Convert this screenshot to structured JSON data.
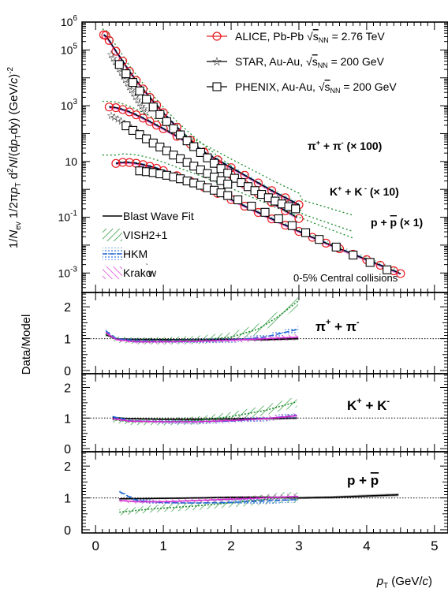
{
  "chart_data": [
    {
      "type": "scatter",
      "panel": "spectra",
      "ylabel": "1/N_ev 1/2πp_T d²N/(dp_T dy) (GeV/c)^-2",
      "yscale": "log",
      "ylim": [
        0.0002,
        1000000
      ],
      "xlim": [
        -0.2,
        5.2
      ],
      "yticks": [
        "10^-3",
        "10^-1",
        "10",
        "10^3",
        "10^5",
        "10^6"
      ],
      "legend_top": [
        {
          "key": "alice",
          "label": "ALICE, Pb-Pb √s_NN = 2.76 TeV",
          "marker": "open-circle",
          "color": "#e8191f"
        },
        {
          "key": "star",
          "label": "STAR, Au-Au, √s_NN = 200 GeV",
          "marker": "open-star",
          "color": "#000000"
        },
        {
          "key": "phenix",
          "label": "PHENIX, Au-Au, √s_NN = 200 GeV",
          "marker": "open-square",
          "color": "#000000"
        }
      ],
      "legend_models": [
        {
          "key": "bw",
          "label": "Blast Wave Fit",
          "color": "#000000"
        },
        {
          "key": "vish",
          "label": "VISH2+1",
          "color": "#1e8f2c"
        },
        {
          "key": "hkm",
          "label": "HKM",
          "color": "#1f67d6"
        },
        {
          "key": "krak",
          "label": "Krakow",
          "color": "#d42bd0"
        }
      ],
      "species_labels": [
        "π⁺ + π⁻ (× 100)",
        "K⁺ + K⁻ (× 10)",
        "p + p̄ (× 1)"
      ],
      "annotation": "0-5% Central collisions",
      "series": [
        {
          "name": "π⁺ + π⁻ (× 100) ALICE",
          "x": [
            0.12,
            0.15,
            0.2,
            0.3,
            0.4,
            0.5,
            0.6,
            0.7,
            0.8,
            0.9,
            1.0,
            1.2,
            1.4,
            1.6,
            1.8,
            2.0,
            2.2,
            2.4,
            2.6,
            2.8,
            3.0
          ],
          "y": [
            350000,
            330000,
            220000,
            90000,
            40000,
            17000,
            8000,
            4000,
            2000,
            1050,
            560,
            170,
            58,
            21,
            8.3,
            3.4,
            1.5,
            0.7,
            0.34,
            0.17,
            0.09
          ]
        },
        {
          "name": "K⁺ + K⁻ (× 10) ALICE",
          "x": [
            0.2,
            0.3,
            0.4,
            0.5,
            0.6,
            0.7,
            0.8,
            0.9,
            1.0,
            1.2,
            1.4,
            1.6,
            1.8,
            2.0,
            2.2,
            2.4,
            2.6,
            2.8,
            3.0
          ],
          "y": [
            900,
            850,
            730,
            600,
            470,
            360,
            270,
            200,
            150,
            80,
            42,
            22,
            11.5,
            6.0,
            3.2,
            1.7,
            0.9,
            0.5,
            0.28
          ]
        },
        {
          "name": "p + p̄ (× 1) ALICE",
          "x": [
            0.3,
            0.4,
            0.5,
            0.6,
            0.7,
            0.8,
            0.9,
            1.0,
            1.2,
            1.4,
            1.6,
            1.8,
            2.0,
            2.2,
            2.4,
            2.6,
            2.8,
            3.0,
            3.2,
            3.4,
            3.6,
            3.8,
            4.0,
            4.2,
            4.4,
            4.5
          ],
          "y": [
            8.5,
            9.3,
            9.2,
            8.6,
            7.7,
            6.7,
            5.7,
            4.7,
            3.1,
            1.95,
            1.2,
            0.72,
            0.43,
            0.25,
            0.148,
            0.087,
            0.052,
            0.031,
            0.019,
            0.0118,
            0.0074,
            0.0047,
            0.003,
            0.0019,
            0.0012,
            0.00095
          ]
        },
        {
          "name": "π⁺ + π⁻ (× 100) STAR",
          "x": [
            0.23,
            0.26,
            0.29,
            0.32,
            0.35,
            0.38,
            0.41,
            0.44,
            0.47,
            0.5,
            0.53,
            0.56,
            0.59,
            0.62,
            0.65,
            0.68,
            0.71,
            0.74
          ],
          "y": [
            72000,
            53000,
            40000,
            30000,
            22000,
            16500,
            12000,
            9000,
            6800,
            5000,
            3800,
            2900,
            2200,
            1700,
            1300,
            1000,
            800,
            620
          ]
        },
        {
          "name": "K⁺ + K⁻ (× 10) STAR",
          "x": [
            0.23,
            0.28,
            0.33,
            0.38,
            0.43,
            0.48,
            0.53,
            0.58,
            0.63,
            0.68,
            0.73
          ],
          "y": [
            460,
            400,
            340,
            290,
            240,
            200,
            165,
            135,
            110,
            90,
            72
          ]
        },
        {
          "name": "π⁺ + π⁻ (× 100) PHENIX",
          "x": [
            0.35,
            0.45,
            0.55,
            0.65,
            0.75,
            0.85,
            0.95,
            1.05,
            1.15,
            1.25,
            1.35,
            1.45,
            1.55,
            1.65,
            1.75,
            1.85,
            1.95,
            2.05,
            2.15,
            2.25,
            2.35,
            2.45,
            2.55,
            2.65,
            2.75,
            2.85,
            2.95
          ],
          "y": [
            30000,
            14000,
            6800,
            3400,
            1700,
            900,
            480,
            270,
            150,
            90,
            55,
            34,
            21,
            13.5,
            8.6,
            5.6,
            3.8,
            2.5,
            1.75,
            1.25,
            0.9,
            0.66,
            0.5,
            0.38,
            0.3,
            0.24,
            0.2
          ]
        },
        {
          "name": "K⁺ + K⁻ (× 10) PHENIX",
          "x": [
            0.45,
            0.55,
            0.65,
            0.75,
            0.85,
            0.95,
            1.05,
            1.15,
            1.25,
            1.35,
            1.45,
            1.55,
            1.65,
            1.75,
            1.85,
            1.95
          ],
          "y": [
            190,
            130,
            92,
            65,
            46,
            33,
            24,
            17,
            12.5,
            9.2,
            6.8,
            5.0,
            3.7,
            2.75,
            2.05,
            1.55
          ]
        },
        {
          "name": "p + p̄ (× 1) PHENIX",
          "x": [
            0.65,
            0.75,
            0.85,
            0.95,
            1.05,
            1.15,
            1.25,
            1.35,
            1.45,
            1.55,
            1.65,
            1.75,
            1.85,
            1.95,
            2.1,
            2.3,
            2.5,
            2.7,
            2.9,
            3.1,
            3.3,
            3.55,
            3.8,
            4.05,
            4.3
          ],
          "y": [
            4.6,
            4.3,
            4.0,
            3.6,
            3.2,
            2.8,
            2.4,
            2.0,
            1.7,
            1.4,
            1.15,
            0.93,
            0.75,
            0.6,
            0.42,
            0.25,
            0.15,
            0.088,
            0.05,
            0.028,
            0.016,
            0.0085,
            0.0044,
            0.0024,
            0.0013
          ]
        }
      ]
    },
    {
      "type": "line",
      "panel": "ratio-pion",
      "ylabel": "Data/Model",
      "species_label": "π⁺ + π⁻",
      "ylim": [
        -0.1,
        2.45
      ],
      "yticks": [
        "0",
        "1",
        "2"
      ],
      "xticks": [
        "0",
        "1",
        "2",
        "3",
        "4",
        "5"
      ],
      "series": [
        {
          "name": "Blast Wave Fit",
          "x": [
            0.15,
            0.3,
            0.5,
            1.0,
            1.5,
            2.0,
            2.5,
            3.0
          ],
          "y": [
            1.12,
            1.0,
            0.98,
            0.97,
            0.97,
            0.98,
            0.97,
            1.0
          ]
        },
        {
          "name": "VISH2+1",
          "x": [
            0.15,
            0.3,
            0.6,
            1.0,
            1.5,
            2.0,
            2.4,
            2.7,
            3.0
          ],
          "y": [
            1.15,
            0.98,
            0.93,
            0.93,
            0.96,
            1.05,
            1.3,
            1.7,
            2.2
          ]
        },
        {
          "name": "HKM",
          "x": [
            0.15,
            0.3,
            0.6,
            1.0,
            1.5,
            2.0,
            2.5,
            3.0
          ],
          "y": [
            1.25,
            1.0,
            0.93,
            0.92,
            0.92,
            0.95,
            1.05,
            1.3
          ]
        },
        {
          "name": "Krakow",
          "x": [
            0.15,
            0.3,
            0.6,
            1.0,
            1.5,
            2.0,
            2.5,
            3.0
          ],
          "y": [
            1.2,
            0.97,
            0.9,
            0.9,
            0.92,
            0.95,
            1.0,
            1.05
          ]
        }
      ]
    },
    {
      "type": "line",
      "panel": "ratio-kaon",
      "species_label": "K⁺ + K⁻",
      "ylim": [
        -0.1,
        2.45
      ],
      "yticks": [
        "0",
        "1",
        "2"
      ],
      "series": [
        {
          "name": "Blast Wave Fit",
          "x": [
            0.25,
            0.5,
            1.0,
            1.5,
            2.0,
            2.5,
            3.0
          ],
          "y": [
            1.02,
            0.98,
            0.96,
            0.96,
            0.97,
            0.98,
            1.0
          ]
        },
        {
          "name": "VISH2+1",
          "x": [
            0.25,
            0.5,
            1.0,
            1.5,
            2.0,
            2.5,
            3.0
          ],
          "y": [
            0.95,
            0.88,
            0.88,
            0.92,
            1.05,
            1.25,
            1.55
          ]
        },
        {
          "name": "HKM",
          "x": [
            0.25,
            0.5,
            1.0,
            1.5,
            2.0,
            2.5,
            3.0
          ],
          "y": [
            1.05,
            0.92,
            0.87,
            0.87,
            0.9,
            0.98,
            1.1
          ]
        },
        {
          "name": "Krakow",
          "x": [
            0.25,
            0.5,
            1.0,
            1.5,
            2.0,
            2.5,
            3.0
          ],
          "y": [
            0.98,
            0.9,
            0.88,
            0.88,
            0.92,
            0.98,
            1.08
          ]
        }
      ]
    },
    {
      "type": "line",
      "panel": "ratio-proton",
      "species_label": "p + p̄",
      "ylim": [
        -0.1,
        2.45
      ],
      "yticks": [
        "0",
        "1",
        "2"
      ],
      "xlabel": "p_T (GeV/c)",
      "series": [
        {
          "name": "Blast Wave Fit",
          "x": [
            0.35,
            0.8,
            1.5,
            2.0,
            2.5,
            3.0,
            3.5,
            4.0,
            4.5
          ],
          "y": [
            0.97,
            0.98,
            1.0,
            1.02,
            1.02,
            1.0,
            1.02,
            1.06,
            1.1
          ]
        },
        {
          "name": "VISH2+1",
          "x": [
            0.35,
            0.8,
            1.5,
            2.0,
            2.5,
            2.8,
            3.0
          ],
          "y": [
            0.55,
            0.65,
            0.75,
            0.85,
            0.95,
            1.02,
            1.0
          ]
        },
        {
          "name": "HKM",
          "x": [
            0.35,
            0.6,
            1.0,
            1.5,
            2.0,
            2.5,
            3.0
          ],
          "y": [
            1.2,
            0.92,
            0.85,
            0.84,
            0.86,
            0.9,
            0.95
          ]
        },
        {
          "name": "Krakow",
          "x": [
            0.35,
            0.6,
            1.0,
            1.5,
            2.0,
            2.5,
            3.0
          ],
          "y": [
            0.92,
            0.88,
            0.88,
            0.92,
            0.96,
            1.0,
            1.05
          ]
        }
      ]
    }
  ]
}
